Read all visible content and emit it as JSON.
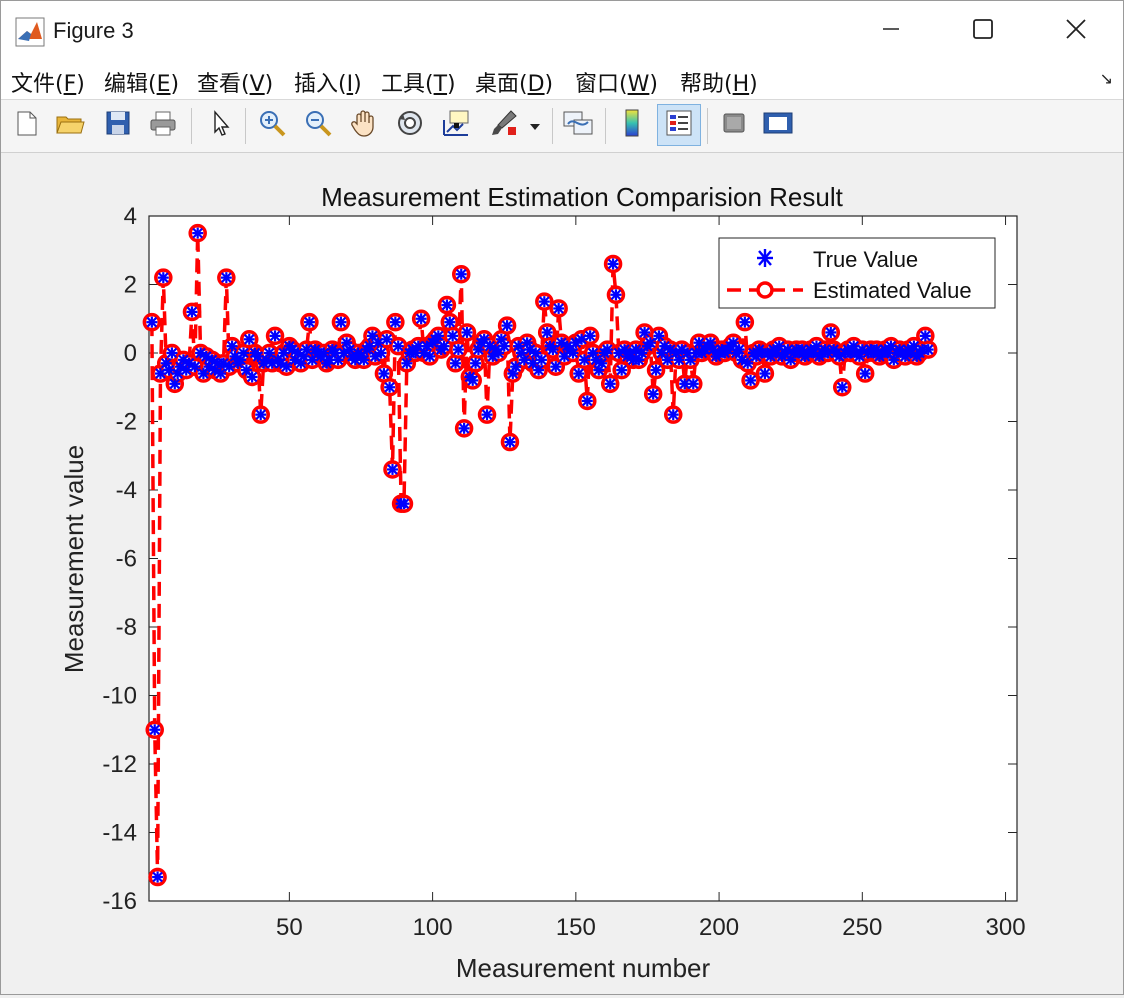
{
  "window": {
    "title": "Figure 3"
  },
  "menu": [
    {
      "label": "文件(",
      "key": "F",
      "tail": ")"
    },
    {
      "label": "编辑(",
      "key": "E",
      "tail": ")"
    },
    {
      "label": "查看(",
      "key": "V",
      "tail": ")"
    },
    {
      "label": "插入(",
      "key": "I",
      "tail": ")"
    },
    {
      "label": "工具(",
      "key": "T",
      "tail": ")"
    },
    {
      "label": "桌面(",
      "key": "D",
      "tail": ")"
    },
    {
      "label": "窗口(",
      "key": "W",
      "tail": ")"
    },
    {
      "label": "帮助(",
      "key": "H",
      "tail": ")"
    }
  ],
  "toolbar": [
    "new-figure-icon",
    "open-file-icon",
    "save-icon",
    "print-icon",
    "pointer-icon",
    "zoom-in-icon",
    "zoom-out-icon",
    "pan-hand-icon",
    "rotate-3d-icon",
    "data-cursor-icon",
    "brush-icon",
    "link-plot-icon",
    "colorbar-icon",
    "legend-icon",
    "hide-plot-tools-icon",
    "show-plot-tools-icon"
  ],
  "colors": {
    "true_value": "#0000ff",
    "estimated_value": "#ff0000",
    "axes_bg": "#ffffff"
  },
  "chart_data": {
    "type": "line",
    "title": "Measurement Estimation Comparision Result",
    "xlabel": "Measurement number",
    "ylabel": "Measurement value",
    "xlim": [
      1,
      304
    ],
    "ylim": [
      -16,
      4
    ],
    "xticks": [
      50,
      100,
      150,
      200,
      250,
      300
    ],
    "yticks": [
      4,
      2,
      0,
      -2,
      -4,
      -6,
      -8,
      -10,
      -12,
      -14,
      -16
    ],
    "grid": false,
    "legend_position": "top-right",
    "series": [
      {
        "name": "True Value",
        "style": "blue asterisk markers",
        "values": [
          0.9,
          -11.0,
          -15.3,
          -0.6,
          2.2,
          -0.3,
          -0.5,
          0.0,
          -0.9,
          -0.6,
          -0.4,
          -0.2,
          -0.5,
          -0.3,
          1.2,
          -0.4,
          3.5,
          0.0,
          -0.6,
          -0.1,
          -0.4,
          -0.2,
          -0.5,
          -0.3,
          -0.6,
          -0.3,
          2.2,
          -0.4,
          0.2,
          -0.1,
          -0.3,
          -0.2,
          0.0,
          -0.5,
          0.4,
          -0.7,
          0.0,
          -0.1,
          -1.8,
          -0.3,
          -0.2,
          0.0,
          -0.3,
          0.5,
          -0.2,
          -0.3,
          0.0,
          -0.4,
          0.2,
          0.1,
          -0.2,
          0.0,
          -0.3,
          -0.1,
          0.1,
          0.9,
          -0.2,
          0.1,
          0.0,
          -0.1,
          0.0,
          -0.3,
          -0.2,
          0.1,
          0.0,
          -0.2,
          0.9,
          0.0,
          0.3,
          0.1,
          -0.1,
          -0.2,
          0.0,
          -0.1,
          -0.2,
          0.1,
          0.2,
          0.5,
          -0.1,
          0.3,
          0.0,
          -0.6,
          0.4,
          -1.0,
          -3.4,
          0.9,
          0.2,
          -4.4,
          -4.4,
          -0.3,
          0.0,
          0.1,
          0.0,
          0.2,
          1.0,
          0.0,
          0.2,
          -0.1,
          0.3,
          0.4,
          0.5,
          0.1,
          0.2,
          1.4,
          0.9,
          0.5,
          -0.3,
          0.1,
          2.3,
          -2.2,
          0.6,
          -0.7,
          -0.8,
          -0.3,
          0.1,
          0.3,
          0.4,
          -1.8,
          0.2,
          -0.1,
          0.1,
          0.0,
          0.4,
          0.2,
          0.8,
          -2.6,
          -0.6,
          -0.4,
          0.2,
          0.0,
          -0.2,
          0.3,
          0.1,
          -0.3,
          0.0,
          -0.5,
          -0.2,
          1.5,
          0.6,
          0.2,
          0.1,
          -0.4,
          1.3,
          0.3,
          -0.1,
          0.2,
          0.1,
          0.0,
          0.3,
          -0.6,
          0.4,
          -0.2,
          -1.4,
          0.5,
          0.0,
          -0.2,
          -0.5,
          -0.3,
          0.0,
          0.1,
          -0.9,
          2.6,
          1.7,
          0.0,
          -0.5,
          0.1,
          -0.1,
          0.0,
          -0.2,
          0.1,
          -0.2,
          0.0,
          0.6,
          0.2,
          0.3,
          -1.2,
          -0.5,
          0.5,
          0.0,
          0.2,
          -0.2,
          0.1,
          -1.8,
          0.0,
          -0.2,
          0.1,
          -0.9,
          0.0,
          -0.2,
          -0.9,
          0.0,
          0.3,
          0.0,
          0.1,
          0.2,
          0.3,
          0.1,
          -0.1,
          0.0,
          0.1,
          0.0,
          0.1,
          0.2,
          0.3,
          0.0,
          0.1,
          -0.2,
          0.9,
          -0.3,
          -0.8,
          0.0,
          -0.1,
          0.1,
          0.0,
          -0.6,
          0.0,
          -0.1,
          0.1,
          0.0,
          0.2,
          -0.1,
          0.0,
          0.1,
          -0.2,
          0.0,
          0.1,
          0.0,
          0.1,
          -0.1,
          0.0,
          0.1,
          0.0,
          0.2,
          -0.1,
          0.0,
          0.1,
          0.0,
          0.6,
          0.1,
          0.0,
          -0.1,
          -1.0,
          0.0,
          0.1,
          0.0,
          0.2,
          0.0,
          -0.1,
          0.1,
          -0.6,
          0.0,
          0.1,
          0.0,
          0.1,
          -0.1,
          0.0,
          0.1,
          0.0,
          0.2,
          -0.2,
          0.0,
          0.1,
          0.0,
          -0.1,
          0.1,
          0.0,
          0.2,
          -0.1,
          0.0,
          0.1,
          0.5,
          0.1
        ]
      },
      {
        "name": "Estimated Value",
        "style": "red dashed line with circle markers",
        "values": [
          0.9,
          -11.0,
          -15.3,
          -0.6,
          2.2,
          -0.3,
          -0.5,
          0.0,
          -0.9,
          -0.6,
          -0.4,
          -0.2,
          -0.5,
          -0.3,
          1.2,
          -0.4,
          3.5,
          0.0,
          -0.6,
          -0.1,
          -0.4,
          -0.2,
          -0.5,
          -0.3,
          -0.6,
          -0.3,
          2.2,
          -0.4,
          0.2,
          -0.1,
          -0.3,
          -0.2,
          0.0,
          -0.5,
          0.4,
          -0.7,
          0.0,
          -0.1,
          -1.8,
          -0.3,
          -0.2,
          0.0,
          -0.3,
          0.5,
          -0.2,
          -0.3,
          0.0,
          -0.4,
          0.2,
          0.1,
          -0.2,
          0.0,
          -0.3,
          -0.1,
          0.1,
          0.9,
          -0.2,
          0.1,
          0.0,
          -0.1,
          0.0,
          -0.3,
          -0.2,
          0.1,
          0.0,
          -0.2,
          0.9,
          0.0,
          0.3,
          0.1,
          -0.1,
          -0.2,
          0.0,
          -0.1,
          -0.2,
          0.1,
          0.2,
          0.5,
          -0.1,
          0.3,
          0.0,
          -0.6,
          0.4,
          -1.0,
          -3.4,
          0.9,
          0.2,
          -4.4,
          -4.4,
          -0.3,
          0.0,
          0.1,
          0.0,
          0.2,
          1.0,
          0.0,
          0.2,
          -0.1,
          0.3,
          0.4,
          0.5,
          0.1,
          0.2,
          1.4,
          0.9,
          0.5,
          -0.3,
          0.1,
          2.3,
          -2.2,
          0.6,
          -0.7,
          -0.8,
          -0.3,
          0.1,
          0.3,
          0.4,
          -1.8,
          0.2,
          -0.1,
          0.1,
          0.0,
          0.4,
          0.2,
          0.8,
          -2.6,
          -0.6,
          -0.4,
          0.2,
          0.0,
          -0.2,
          0.3,
          0.1,
          -0.3,
          0.0,
          -0.5,
          -0.2,
          1.5,
          0.6,
          0.2,
          0.1,
          -0.4,
          1.3,
          0.3,
          -0.1,
          0.2,
          0.1,
          0.0,
          0.3,
          -0.6,
          0.4,
          -0.2,
          -1.4,
          0.5,
          0.0,
          -0.2,
          -0.5,
          -0.3,
          0.0,
          0.1,
          -0.9,
          2.6,
          1.7,
          0.0,
          -0.5,
          0.1,
          -0.1,
          0.0,
          -0.2,
          0.1,
          -0.2,
          0.0,
          0.6,
          0.2,
          0.3,
          -1.2,
          -0.5,
          0.5,
          0.0,
          0.2,
          -0.2,
          0.1,
          -1.8,
          0.0,
          -0.2,
          0.1,
          -0.9,
          0.0,
          -0.2,
          -0.9,
          0.0,
          0.3,
          0.0,
          0.1,
          0.2,
          0.3,
          0.1,
          -0.1,
          0.0,
          0.1,
          0.0,
          0.1,
          0.2,
          0.3,
          0.0,
          0.1,
          -0.2,
          0.9,
          -0.3,
          -0.8,
          0.0,
          -0.1,
          0.1,
          0.0,
          -0.6,
          0.0,
          -0.1,
          0.1,
          0.0,
          0.2,
          -0.1,
          0.0,
          0.1,
          -0.2,
          0.0,
          0.1,
          0.0,
          0.1,
          -0.1,
          0.0,
          0.1,
          0.0,
          0.2,
          -0.1,
          0.0,
          0.1,
          0.0,
          0.6,
          0.1,
          0.0,
          -0.1,
          -1.0,
          0.0,
          0.1,
          0.0,
          0.2,
          0.0,
          -0.1,
          0.1,
          -0.6,
          0.0,
          0.1,
          0.0,
          0.1,
          -0.1,
          0.0,
          0.1,
          0.0,
          0.2,
          -0.2,
          0.0,
          0.1,
          0.0,
          -0.1,
          0.1,
          0.0,
          0.2,
          -0.1,
          0.0,
          0.1,
          0.5,
          0.1
        ]
      }
    ]
  }
}
